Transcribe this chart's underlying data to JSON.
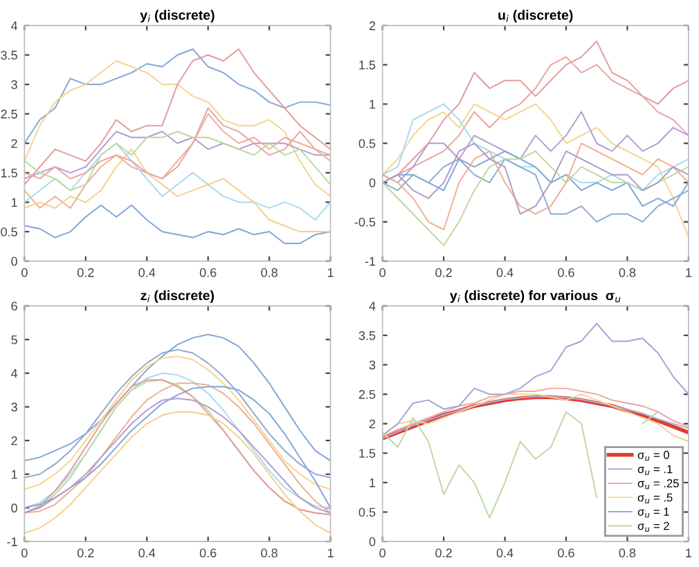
{
  "chart_data": [
    {
      "type": "line",
      "title": "y$_{i}$ (discrete)",
      "x": [
        0,
        0.05,
        0.1,
        0.15,
        0.2,
        0.25,
        0.3,
        0.35,
        0.4,
        0.45,
        0.5,
        0.55,
        0.6,
        0.65,
        0.7,
        0.75,
        0.8,
        0.85,
        0.9,
        0.95,
        1
      ],
      "xlim": [
        0,
        1
      ],
      "ylim": [
        0,
        4
      ],
      "xticks": [
        0,
        0.2,
        0.4,
        0.6,
        0.8,
        1
      ],
      "yticks": [
        0,
        0.5,
        1,
        1.5,
        2,
        2.5,
        3,
        3.5,
        4
      ],
      "grid": false,
      "legend": false,
      "series": [
        {
          "color": "#7fa6d8",
          "values": [
            0.6,
            0.55,
            0.4,
            0.5,
            0.75,
            0.95,
            0.75,
            0.95,
            0.7,
            0.5,
            0.45,
            0.4,
            0.5,
            0.45,
            0.55,
            0.45,
            0.5,
            0.3,
            0.3,
            0.45,
            0.5
          ]
        },
        {
          "color": "#7fa6d8",
          "values": [
            2.0,
            2.4,
            2.6,
            3.1,
            3.0,
            3.0,
            3.1,
            3.2,
            3.35,
            3.3,
            3.5,
            3.6,
            3.3,
            3.2,
            3.0,
            2.9,
            2.7,
            2.6,
            2.7,
            2.7,
            2.65
          ]
        },
        {
          "color": "#f3d58c",
          "values": [
            1.7,
            2.3,
            2.7,
            2.9,
            3.0,
            3.2,
            3.4,
            3.3,
            3.2,
            3.0,
            3.0,
            2.8,
            2.7,
            2.4,
            2.3,
            2.3,
            2.4,
            2.2,
            1.7,
            1.3,
            1.1
          ]
        },
        {
          "color": "#e39a9a",
          "values": [
            1.3,
            1.6,
            1.9,
            1.8,
            1.7,
            2.0,
            2.4,
            2.2,
            2.3,
            2.3,
            3.0,
            3.4,
            3.5,
            3.4,
            3.6,
            3.2,
            2.9,
            2.6,
            2.3,
            2.1,
            1.9
          ]
        },
        {
          "color": "#b39cce",
          "values": [
            1.4,
            1.5,
            1.6,
            1.5,
            1.6,
            1.9,
            2.2,
            2.1,
            2.1,
            2.2,
            2.0,
            2.1,
            1.9,
            2.0,
            1.9,
            2.0,
            2.0,
            2.0,
            1.9,
            1.8,
            1.8
          ]
        },
        {
          "color": "#f0ae90",
          "values": [
            1.2,
            0.9,
            1.1,
            0.9,
            1.3,
            1.6,
            1.8,
            1.6,
            1.5,
            1.4,
            1.7,
            2.0,
            2.5,
            2.2,
            2.0,
            2.1,
            1.9,
            2.1,
            2.0,
            1.9,
            1.7
          ]
        },
        {
          "color": "#a5dbef",
          "values": [
            1.0,
            1.2,
            1.4,
            1.2,
            1.5,
            1.8,
            2.0,
            1.7,
            1.4,
            1.1,
            1.3,
            1.5,
            1.3,
            1.1,
            1.0,
            1.0,
            0.9,
            1.0,
            0.9,
            0.7,
            1.0
          ]
        },
        {
          "color": "#f5cf8a",
          "values": [
            0.9,
            1.0,
            0.9,
            1.1,
            1.0,
            1.2,
            1.6,
            1.9,
            1.5,
            1.3,
            1.1,
            1.2,
            1.3,
            1.4,
            1.2,
            1.0,
            0.7,
            0.6,
            0.5,
            0.5,
            0.5
          ]
        },
        {
          "color": "#bcd9a0",
          "values": [
            1.7,
            1.5,
            1.4,
            1.2,
            1.3,
            1.8,
            2.0,
            1.8,
            2.1,
            2.1,
            2.2,
            2.1,
            2.1,
            2.0,
            1.9,
            1.8,
            2.0,
            1.8,
            1.9,
            1.6,
            1.3
          ]
        },
        {
          "color": "#e8a3a3",
          "values": [
            1.5,
            1.4,
            1.6,
            1.4,
            1.5,
            1.7,
            1.8,
            1.7,
            1.5,
            1.4,
            1.6,
            2.0,
            2.6,
            2.3,
            2.2,
            2.0,
            1.8,
            1.9,
            2.2,
            1.9,
            1.8
          ]
        }
      ]
    },
    {
      "type": "line",
      "title": "u$_{i}$ (discrete)",
      "x": [
        0,
        0.05,
        0.1,
        0.15,
        0.2,
        0.25,
        0.3,
        0.35,
        0.4,
        0.45,
        0.5,
        0.55,
        0.6,
        0.65,
        0.7,
        0.75,
        0.8,
        0.85,
        0.9,
        0.95,
        1
      ],
      "xlim": [
        0,
        1
      ],
      "ylim": [
        -1,
        2
      ],
      "xticks": [
        0,
        0.2,
        0.4,
        0.6,
        0.8,
        1
      ],
      "yticks": [
        -1,
        -0.5,
        0,
        0.5,
        1,
        1.5,
        2
      ],
      "grid": false,
      "legend": false,
      "series": [
        {
          "color": "#e39a9a",
          "values": [
            0,
            0.1,
            0.3,
            0.5,
            0.8,
            1.0,
            1.4,
            1.2,
            1.3,
            1.3,
            1.1,
            1.3,
            1.5,
            1.6,
            1.8,
            1.4,
            1.3,
            1.1,
            1.0,
            1.2,
            1.3
          ]
        },
        {
          "color": "#e8a3a3",
          "values": [
            0,
            0.1,
            0.2,
            0.3,
            0.4,
            0.6,
            0.9,
            0.7,
            0.9,
            1.0,
            1.2,
            1.5,
            1.6,
            1.4,
            1.5,
            1.3,
            1.2,
            1.1,
            0.9,
            0.8,
            0.6
          ]
        },
        {
          "color": "#f3d58c",
          "values": [
            0.1,
            0.3,
            0.6,
            0.8,
            0.9,
            0.7,
            1.0,
            0.9,
            0.8,
            0.9,
            1.0,
            0.8,
            0.5,
            0.6,
            0.7,
            0.5,
            0.4,
            0.3,
            0.2,
            -0.2,
            -0.7
          ]
        },
        {
          "color": "#a5dbef",
          "values": [
            0.1,
            0.2,
            0.8,
            0.9,
            1.0,
            0.8,
            0.5,
            0.4,
            0.3,
            0.2,
            0.2,
            0.0,
            0.1,
            0.0,
            0.0,
            0.1,
            0.0,
            -0.1,
            0.1,
            0.2,
            0.3
          ]
        },
        {
          "color": "#b39cce",
          "values": [
            0.1,
            0.0,
            0.2,
            0.5,
            0.5,
            0.3,
            0.6,
            0.5,
            0.4,
            0.3,
            0.6,
            0.4,
            0.6,
            0.9,
            0.5,
            0.4,
            0.6,
            0.4,
            0.5,
            0.7,
            0.6
          ]
        },
        {
          "color": "#7fa6d8",
          "values": [
            0.0,
            0.1,
            0.1,
            0.0,
            -0.1,
            0.3,
            0.2,
            0.3,
            0.4,
            0.3,
            0.2,
            0.0,
            0.1,
            -0.1,
            0.0,
            -0.1,
            0.0,
            -0.3,
            -0.2,
            -0.3,
            0.0
          ]
        },
        {
          "color": "#8fa8d0",
          "values": [
            0.0,
            -0.1,
            0.1,
            0.0,
            0.2,
            0.3,
            0.1,
            0.0,
            0.3,
            0.2,
            0.1,
            -0.4,
            -0.4,
            -0.3,
            -0.5,
            -0.4,
            -0.4,
            -0.5,
            -0.3,
            -0.2,
            -0.1
          ]
        },
        {
          "color": "#bcd9a0",
          "values": [
            0.0,
            -0.2,
            -0.4,
            -0.6,
            -0.8,
            -0.5,
            -0.1,
            0.2,
            0.3,
            0.3,
            0.4,
            0.2,
            0.0,
            0.2,
            0.1,
            0.0,
            0.0,
            -0.1,
            0.0,
            0.1,
            0.2
          ]
        },
        {
          "color": "#f0ae90",
          "values": [
            0.1,
            0.0,
            -0.2,
            -0.5,
            -0.6,
            0.0,
            0.3,
            0.4,
            0.0,
            -0.3,
            -0.4,
            -0.3,
            0.0,
            0.5,
            0.4,
            0.3,
            0.2,
            0.1,
            0.3,
            0.2,
            0.0
          ]
        },
        {
          "color": "#a99bc9",
          "values": [
            0.0,
            0.1,
            -0.1,
            -0.2,
            0.0,
            0.4,
            0.5,
            0.3,
            0.2,
            -0.4,
            -0.3,
            0.0,
            0.4,
            0.3,
            0.2,
            0.1,
            0.1,
            -0.1,
            0.0,
            0.2,
            0.1
          ]
        }
      ]
    },
    {
      "type": "line",
      "title": "z$_{i}$ (discrete)",
      "x": [
        0,
        0.05,
        0.1,
        0.15,
        0.2,
        0.25,
        0.3,
        0.35,
        0.4,
        0.45,
        0.5,
        0.55,
        0.6,
        0.65,
        0.7,
        0.75,
        0.8,
        0.85,
        0.9,
        0.95,
        1
      ],
      "xlim": [
        0,
        1
      ],
      "ylim": [
        -1,
        6
      ],
      "xticks": [
        0,
        0.2,
        0.4,
        0.6,
        0.8,
        1
      ],
      "yticks": [
        -1,
        0,
        1,
        2,
        3,
        4,
        5,
        6
      ],
      "grid": false,
      "legend": false,
      "series": [
        {
          "color": "#7fa6d8",
          "values": [
            1.4,
            1.5,
            1.7,
            1.9,
            2.2,
            2.6,
            3.1,
            3.6,
            4.1,
            4.5,
            4.85,
            5.05,
            5.15,
            5.05,
            4.8,
            4.3,
            3.7,
            3.0,
            2.3,
            1.7,
            1.4
          ]
        },
        {
          "color": "#8fa8d0",
          "values": [
            0.9,
            1.0,
            1.3,
            1.7,
            2.2,
            2.8,
            3.4,
            3.9,
            4.3,
            4.6,
            4.7,
            4.6,
            4.3,
            3.9,
            3.4,
            2.8,
            2.2,
            1.7,
            1.3,
            1.0,
            0.9
          ]
        },
        {
          "color": "#f3d58c",
          "values": [
            0.55,
            0.7,
            1.0,
            1.4,
            2.0,
            2.6,
            3.2,
            3.8,
            4.2,
            4.45,
            4.5,
            4.4,
            4.1,
            3.7,
            3.2,
            2.6,
            2.0,
            1.4,
            1.0,
            0.7,
            0.55
          ]
        },
        {
          "color": "#a5dbef",
          "values": [
            0,
            0.15,
            0.5,
            1.0,
            1.6,
            2.3,
            3.0,
            3.5,
            3.85,
            4.0,
            3.95,
            3.75,
            3.4,
            2.9,
            2.3,
            1.7,
            1.1,
            0.6,
            0.3,
            0.05,
            0
          ]
        },
        {
          "color": "#bcd9a0",
          "values": [
            -0.15,
            0,
            0.4,
            0.9,
            1.6,
            2.3,
            3.0,
            3.5,
            3.75,
            3.8,
            3.65,
            3.3,
            2.9,
            2.3,
            1.7,
            1.1,
            0.6,
            0.2,
            -0.05,
            -0.15,
            -0.2
          ]
        },
        {
          "color": "#e39a9a",
          "values": [
            -0.15,
            0.05,
            0.5,
            1.1,
            1.8,
            2.5,
            3.1,
            3.6,
            3.8,
            3.8,
            3.6,
            3.3,
            2.8,
            2.3,
            1.7,
            1.1,
            0.6,
            0.2,
            -0.05,
            -0.15,
            -0.2
          ]
        },
        {
          "color": "#f0ae90",
          "values": [
            -0.15,
            -0.1,
            0.1,
            0.5,
            0.9,
            1.5,
            2.1,
            2.7,
            3.2,
            3.5,
            3.7,
            3.7,
            3.65,
            3.4,
            3.0,
            2.5,
            1.9,
            1.3,
            0.7,
            0.2,
            -0.15
          ]
        },
        {
          "color": "#7fa6d8",
          "values": [
            0,
            0.1,
            0.3,
            0.6,
            0.9,
            1.3,
            1.8,
            2.3,
            2.7,
            3.1,
            3.35,
            3.55,
            3.6,
            3.6,
            3.5,
            3.2,
            2.8,
            2.2,
            1.5,
            0.8,
            0
          ]
        },
        {
          "color": "#b39cce",
          "values": [
            -0.15,
            0.0,
            0.3,
            0.6,
            1.0,
            1.5,
            2.0,
            2.5,
            2.9,
            3.2,
            3.25,
            3.2,
            3.0,
            2.7,
            2.3,
            1.8,
            1.3,
            0.8,
            0.3,
            0.0,
            -0.15
          ]
        },
        {
          "color": "#f5cf8a",
          "values": [
            -0.75,
            -0.6,
            -0.3,
            0.1,
            0.6,
            1.1,
            1.6,
            2.1,
            2.5,
            2.75,
            2.85,
            2.85,
            2.75,
            2.5,
            2.1,
            1.6,
            1.0,
            0.4,
            -0.1,
            -0.5,
            -0.75
          ]
        }
      ]
    },
    {
      "type": "line",
      "title": "y$_{i}$ (discrete) for various  σ$_{u}$",
      "x": [
        0,
        0.05,
        0.1,
        0.15,
        0.2,
        0.25,
        0.3,
        0.35,
        0.4,
        0.45,
        0.5,
        0.55,
        0.6,
        0.65,
        0.7,
        0.75,
        0.8,
        0.85,
        0.9,
        0.95,
        1
      ],
      "xlim": [
        0,
        1
      ],
      "ylim": [
        0,
        4
      ],
      "xticks": [
        0,
        0.2,
        0.4,
        0.6,
        0.8,
        1
      ],
      "yticks": [
        0,
        0.5,
        1,
        1.5,
        2,
        2.5,
        3,
        3.5,
        4
      ],
      "grid": false,
      "legend": "bottom right",
      "series": [
        {
          "name": "σ$_{u}$ = 0",
          "color": "#e03c31",
          "values": [
            1.75,
            1.85,
            1.95,
            2.05,
            2.15,
            2.22,
            2.3,
            2.35,
            2.4,
            2.43,
            2.45,
            2.45,
            2.43,
            2.4,
            2.35,
            2.3,
            2.22,
            2.15,
            2.05,
            1.95,
            1.85
          ]
        },
        {
          "name": "σ$_{u}$ = .1",
          "color": "#aab0d8",
          "values": [
            1.75,
            1.86,
            1.97,
            2.06,
            2.15,
            2.23,
            2.31,
            2.36,
            2.41,
            2.44,
            2.46,
            2.46,
            2.44,
            2.41,
            2.36,
            2.31,
            2.24,
            2.17,
            2.08,
            2.0,
            1.92
          ]
        },
        {
          "name": "σ$_{u}$ = .25",
          "color": "#f2a0a0",
          "values": [
            1.78,
            1.9,
            2.0,
            2.1,
            2.2,
            2.3,
            2.35,
            2.45,
            2.5,
            2.55,
            2.55,
            2.6,
            2.6,
            2.55,
            2.5,
            2.4,
            2.35,
            2.3,
            2.2,
            2.05,
            1.95
          ]
        },
        {
          "name": "σ$_{u}$ = .5",
          "color": "#f3d08e",
          "values": [
            1.8,
            2.0,
            2.05,
            2.0,
            2.1,
            2.2,
            2.3,
            2.4,
            2.5,
            2.5,
            2.5,
            2.45,
            2.4,
            2.5,
            2.4,
            2.3,
            2.2,
            2.1,
            2.0,
            1.8,
            1.7
          ]
        },
        {
          "name": "σ$_{u}$ = 1",
          "color": "#a3a3d6",
          "values": [
            1.8,
            2.0,
            2.35,
            2.4,
            2.25,
            2.3,
            2.6,
            2.5,
            2.5,
            2.6,
            2.8,
            2.9,
            3.3,
            3.4,
            3.7,
            3.4,
            3.4,
            3.45,
            3.2,
            2.8,
            2.5
          ]
        },
        {
          "name": "σ$_{u}$ = 2",
          "color": "#bcd9a0",
          "values": [
            1.85,
            1.6,
            2.1,
            1.7,
            0.8,
            1.3,
            1.0,
            0.4,
            1.0,
            1.7,
            1.4,
            1.6,
            2.2,
            2.0,
            0.75,
            null,
            null,
            2.0,
            2.2,
            null,
            null
          ]
        }
      ]
    }
  ]
}
